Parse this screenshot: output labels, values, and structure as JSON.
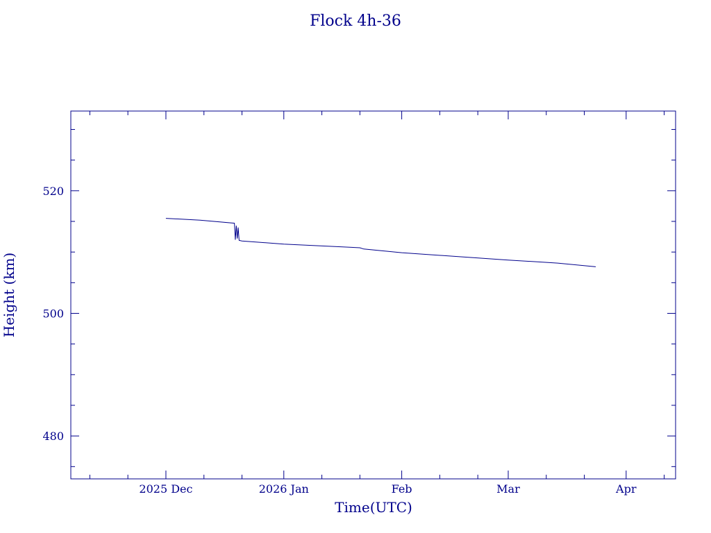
{
  "chart_data": {
    "type": "line",
    "title": "Flock 4h-36",
    "xlabel": "Time(UTC)",
    "ylabel": "Height (km)",
    "x_axis_kind": "date",
    "xlim": [
      "2025-11-06",
      "2026-04-14"
    ],
    "ylim": [
      473,
      533
    ],
    "x_ticks": [
      {
        "date": "2025-12-01",
        "label": "2025 Dec"
      },
      {
        "date": "2026-01-01",
        "label": "2026 Jan"
      },
      {
        "date": "2026-02-01",
        "label": "Feb"
      },
      {
        "date": "2026-03-01",
        "label": "Mar"
      },
      {
        "date": "2026-04-01",
        "label": "Apr"
      }
    ],
    "y_ticks": [
      480,
      500,
      520
    ],
    "grid": false,
    "colors": {
      "axis": "#00008b",
      "series": "#00008b"
    },
    "series": [
      {
        "x": [
          "2025-12-01",
          "2025-12-10",
          "2025-12-19",
          "2025-12-19T06",
          "2025-12-19T12",
          "2025-12-19T18",
          "2025-12-20",
          "2025-12-20T06",
          "2025-12-21",
          "2026-01-01",
          "2026-01-21",
          "2026-01-22",
          "2026-02-01",
          "2026-03-01",
          "2026-03-14",
          "2026-03-24"
        ],
        "y": [
          515.5,
          515.2,
          514.7,
          512.0,
          514.3,
          512.2,
          514.0,
          511.9,
          511.8,
          511.3,
          510.7,
          510.5,
          509.9,
          508.7,
          508.2,
          507.6
        ]
      }
    ]
  }
}
